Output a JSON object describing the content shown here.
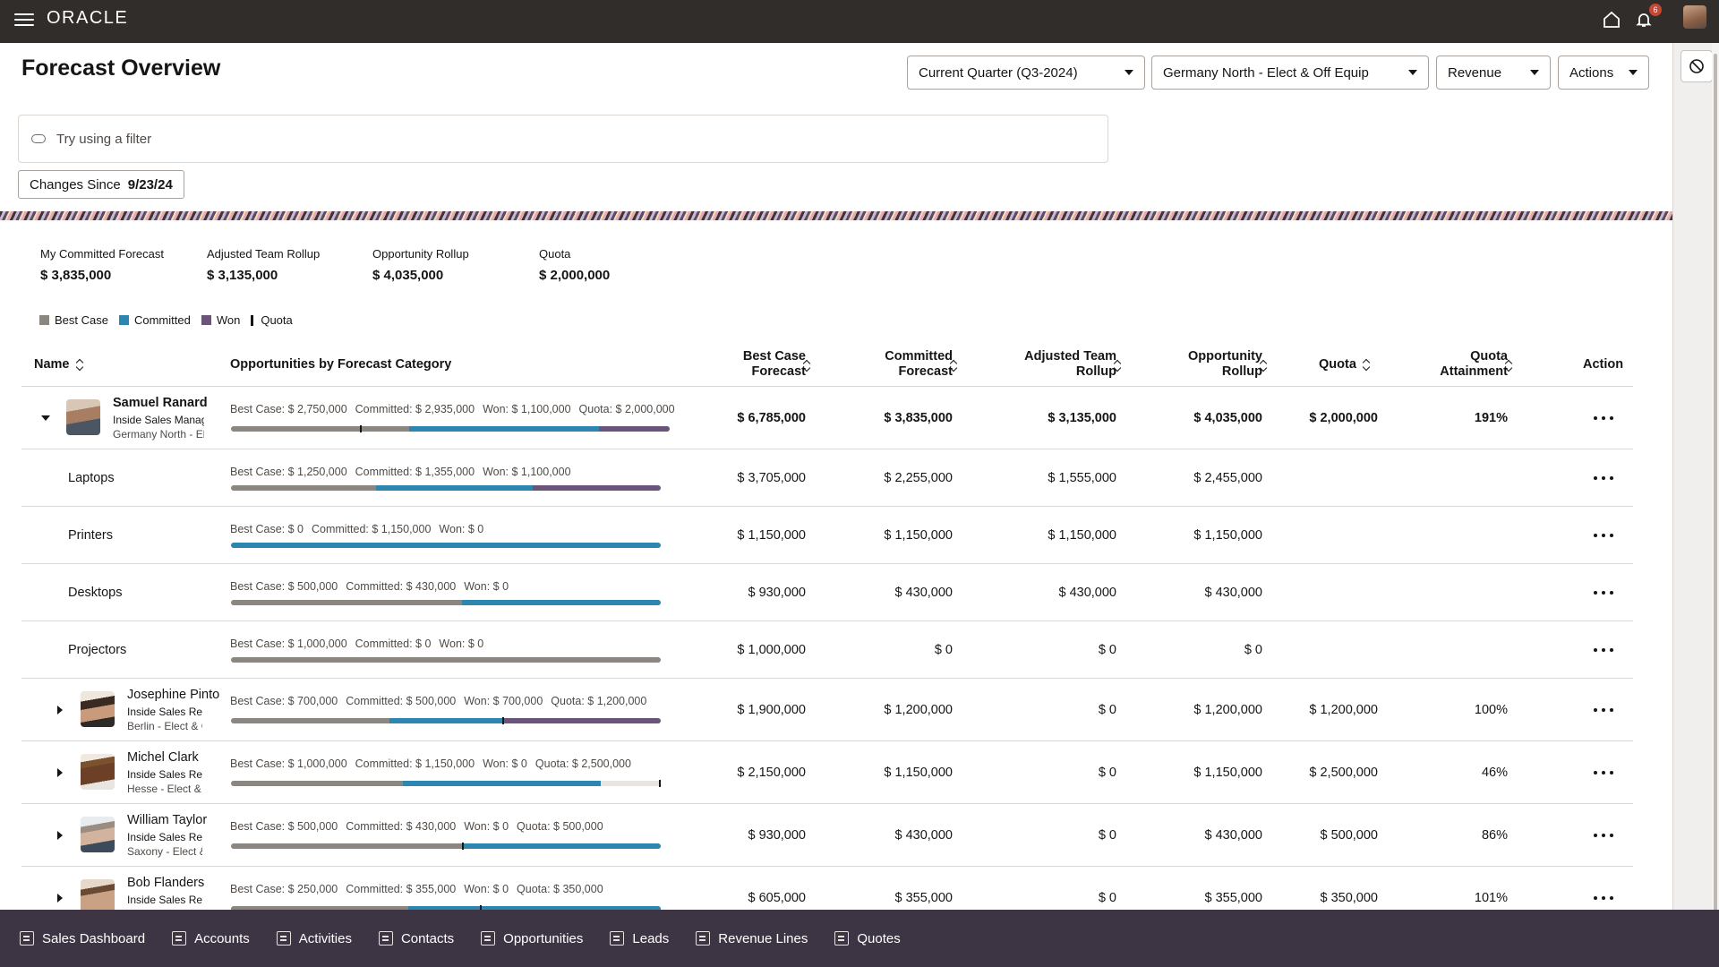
{
  "app": {
    "logo": "ORACLE",
    "notification_count": "6"
  },
  "header": {
    "title": "Forecast Overview",
    "period": "Current Quarter (Q3-2024)",
    "territory": "Germany North - Elect & Off Equip",
    "measure": "Revenue",
    "actions": "Actions"
  },
  "filter": {
    "placeholder": "Try using a filter"
  },
  "changes": {
    "label": "Changes Since",
    "date": "9/23/24"
  },
  "summary": [
    {
      "label": "My Committed Forecast",
      "value": "$ 3,835,000"
    },
    {
      "label": "Adjusted Team Rollup",
      "value": "$ 3,135,000"
    },
    {
      "label": "Opportunity Rollup",
      "value": "$ 4,035,000"
    },
    {
      "label": "Quota",
      "value": "$ 2,000,000"
    }
  ],
  "legend": {
    "best": "Best Case",
    "committed": "Committed",
    "won": "Won",
    "quota": "Quota"
  },
  "colors": {
    "best": "#8c8680",
    "committed": "#2c86b0",
    "won": "#6b5479",
    "quota": "#161513"
  },
  "columns": {
    "name": "Name",
    "opps": "Opportunities by Forecast Category",
    "best1": "Best Case",
    "best2": "Forecast",
    "com1": "Committed",
    "com2": "Forecast",
    "adj1": "Adjusted Team",
    "adj2": "Rollup",
    "opp1": "Opportunity",
    "opp2": "Rollup",
    "quota": "Quota",
    "att1": "Quota",
    "att2": "Attainment",
    "action": "Action"
  },
  "manager": {
    "name": "Samuel Ranard",
    "title": "Inside Sales Manager",
    "territory": "Germany North - Elec",
    "opp": {
      "best": "Best Case: $ 2,750,000",
      "com": "Committed: $ 2,935,000",
      "won": "Won: $ 1,100,000",
      "quota": "Quota: $ 2,000,000"
    },
    "bar": {
      "best": 2750000,
      "com": 2935000,
      "won": 1100000,
      "quota": 2000000,
      "max": 6785000
    },
    "best": "$ 6,785,000",
    "committed": "$ 3,835,000",
    "adjusted": "$ 3,135,000",
    "opportunity": "$ 4,035,000",
    "quota": "$ 2,000,000",
    "attainment": "191%"
  },
  "categories": [
    {
      "name": "Laptops",
      "opp": {
        "best": "Best Case: $ 1,250,000",
        "com": "Committed: $ 1,355,000",
        "won": "Won: $ 1,100,000"
      },
      "bar": {
        "best": 1250000,
        "com": 1355000,
        "won": 1100000,
        "max": 3705000
      },
      "best": "$ 3,705,000",
      "committed": "$ 2,255,000",
      "adjusted": "$ 1,555,000",
      "opportunity": "$ 2,455,000"
    },
    {
      "name": "Printers",
      "opp": {
        "best": "Best Case: $ 0",
        "com": "Committed: $ 1,150,000",
        "won": "Won: $ 0"
      },
      "bar": {
        "best": 0,
        "com": 1150000,
        "won": 0,
        "max": 1150000
      },
      "best": "$ 1,150,000",
      "committed": "$ 1,150,000",
      "adjusted": "$ 1,150,000",
      "opportunity": "$ 1,150,000"
    },
    {
      "name": "Desktops",
      "opp": {
        "best": "Best Case: $ 500,000",
        "com": "Committed: $ 430,000",
        "won": "Won: $ 0"
      },
      "bar": {
        "best": 500000,
        "com": 430000,
        "won": 0,
        "max": 930000
      },
      "best": "$ 930,000",
      "committed": "$ 430,000",
      "adjusted": "$ 430,000",
      "opportunity": "$ 430,000"
    },
    {
      "name": "Projectors",
      "opp": {
        "best": "Best Case: $ 1,000,000",
        "com": "Committed: $ 0",
        "won": "Won: $ 0"
      },
      "bar": {
        "best": 1000000,
        "com": 0,
        "won": 0,
        "max": 1000000
      },
      "best": "$ 1,000,000",
      "committed": "$ 0",
      "adjusted": "$ 0",
      "opportunity": "$ 0"
    }
  ],
  "reps": [
    {
      "name": "Josephine Pinto",
      "title": "Inside Sales Repres",
      "territory": "Berlin - Elect & Off",
      "opp": {
        "best": "Best Case: $ 700,000",
        "com": "Committed: $ 500,000",
        "won": "Won: $ 700,000",
        "quota": "Quota: $ 1,200,000"
      },
      "bar": {
        "best": 700000,
        "com": 500000,
        "won": 700000,
        "quota": 1200000,
        "max": 1900000
      },
      "best": "$ 1,900,000",
      "committed": "$ 1,200,000",
      "adjusted": "$ 0",
      "opportunity": "$ 1,200,000",
      "quota": "$ 1,200,000",
      "attainment": "100%"
    },
    {
      "name": "Michel Clark",
      "title": "Inside Sales Repres",
      "territory": "Hesse - Elect & Off",
      "opp": {
        "best": "Best Case: $ 1,000,000",
        "com": "Committed: $ 1,150,000",
        "won": "Won: $ 0",
        "quota": "Quota: $ 2,500,000"
      },
      "bar": {
        "best": 1000000,
        "com": 1150000,
        "won": 0,
        "quota": 2500000,
        "max": 2500000
      },
      "best": "$ 2,150,000",
      "committed": "$ 1,150,000",
      "adjusted": "$ 0",
      "opportunity": "$ 1,150,000",
      "quota": "$ 2,500,000",
      "attainment": "46%"
    },
    {
      "name": "William Taylor",
      "title": "Inside Sales Repres",
      "territory": "Saxony - Elect & O",
      "opp": {
        "best": "Best Case: $ 500,000",
        "com": "Committed: $ 430,000",
        "won": "Won: $ 0",
        "quota": "Quota: $ 500,000"
      },
      "bar": {
        "best": 500000,
        "com": 430000,
        "won": 0,
        "quota": 500000,
        "max": 930000
      },
      "best": "$ 930,000",
      "committed": "$ 430,000",
      "adjusted": "$ 0",
      "opportunity": "$ 430,000",
      "quota": "$ 500,000",
      "attainment": "86%"
    },
    {
      "name": "Bob Flanders",
      "title": "Inside Sales Repres",
      "territory": "",
      "opp": {
        "best": "Best Case: $ 250,000",
        "com": "Committed: $ 355,000",
        "won": "Won: $ 0",
        "quota": "Quota: $ 350,000"
      },
      "bar": {
        "best": 250000,
        "com": 355000,
        "won": 0,
        "quota": 350000,
        "max": 605000
      },
      "best": "$ 605,000",
      "committed": "$ 355,000",
      "adjusted": "$ 0",
      "opportunity": "$ 355,000",
      "quota": "$ 350,000",
      "attainment": "101%"
    }
  ],
  "nav": [
    "Sales Dashboard",
    "Accounts",
    "Activities",
    "Contacts",
    "Opportunities",
    "Leads",
    "Revenue Lines",
    "Quotes"
  ]
}
